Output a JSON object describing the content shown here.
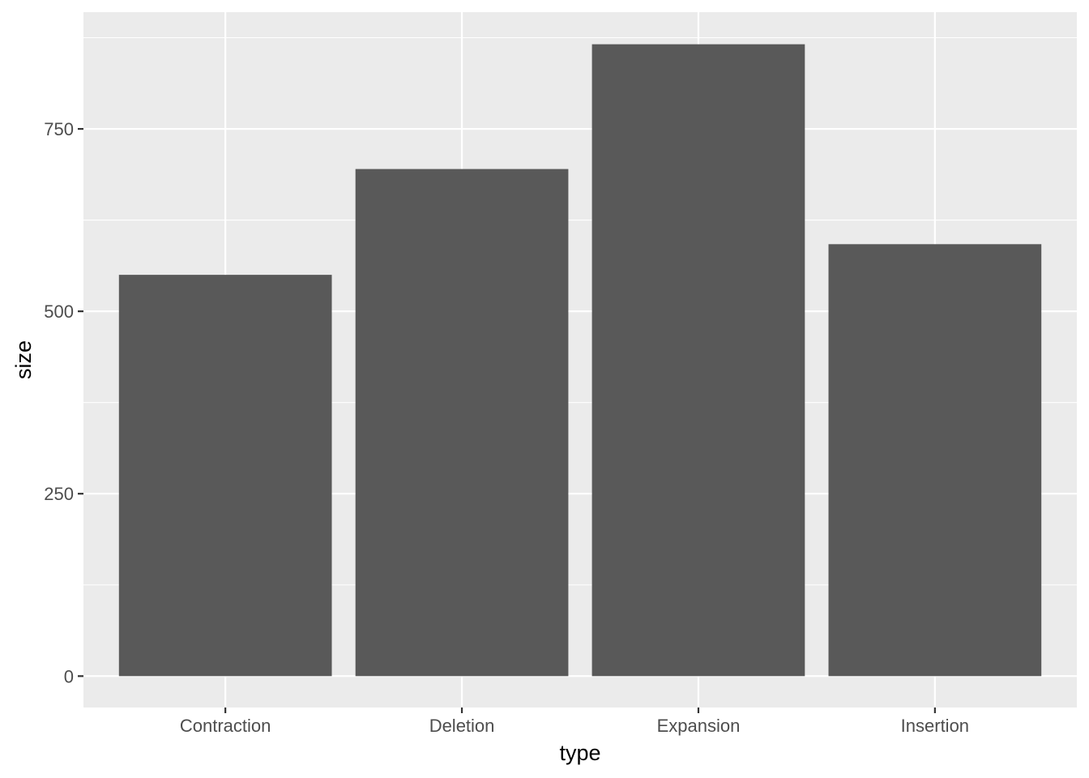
{
  "chart_data": {
    "type": "bar",
    "title": "",
    "xlabel": "type",
    "ylabel": "size",
    "categories": [
      "Contraction",
      "Deletion",
      "Expansion",
      "Insertion"
    ],
    "values": [
      550,
      695,
      866,
      592
    ],
    "ylim": [
      -43,
      910
    ],
    "yticks": [
      0,
      250,
      500,
      750
    ],
    "ytick_labels": [
      "0",
      "250",
      "500",
      "750"
    ],
    "grid": true,
    "legend": "none",
    "colors": {
      "bar": "#595959",
      "panel": "#ebebeb",
      "grid": "#ffffff",
      "tick": "#333333",
      "tick_label": "#4d4d4d"
    }
  }
}
